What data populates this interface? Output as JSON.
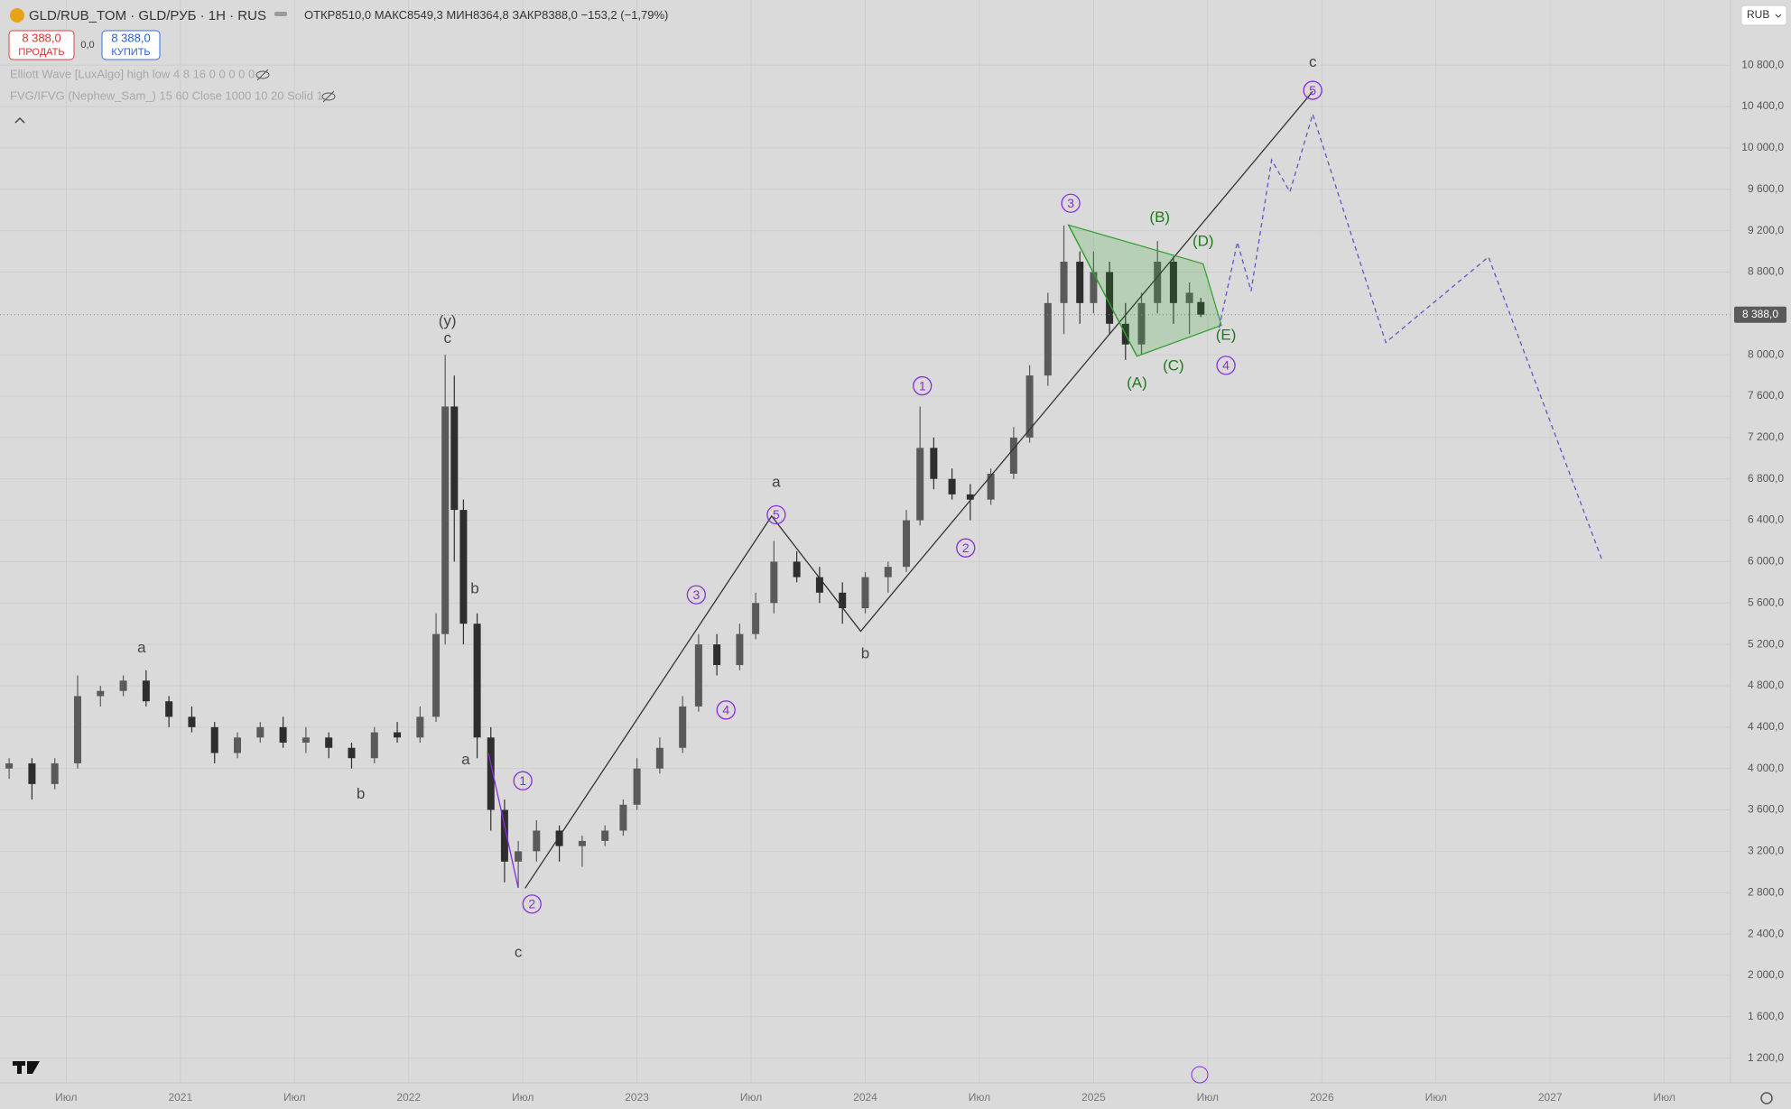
{
  "header": {
    "symbol": "GLD/RUB_TOM · GLD/РУБ · 1H · RUS",
    "open_label": "ОТКР",
    "open": "8510,0",
    "high_label": "МАКС",
    "high": "8549,3",
    "low_label": "МИН",
    "low": "8364,8",
    "close_label": "ЗАКР",
    "close": "8388,0",
    "change": "−153,2 (−1,79%)",
    "sell_price": "8 388,0",
    "sell_label": "ПРОДАТЬ",
    "spread": "0,0",
    "buy_price": "8 388,0",
    "buy_label": "КУПИТЬ",
    "indicators": [
      "Elliott Wave [LuxAlgo] high low 4 8 16 0 0 0 0 0",
      "FVG/IFVG (Nephew_Sam_) 15 60 Close 1000 10 20 Solid 1"
    ],
    "currency": "RUB"
  },
  "chart_data": {
    "type": "candlestick",
    "up_color": "#5a5a5a",
    "down_color": "#2e2e2e",
    "grid": true,
    "x": [
      2020.25,
      2020.35,
      2020.45,
      2020.55,
      2020.65,
      2020.75,
      2020.85,
      2020.95,
      2021.05,
      2021.15,
      2021.25,
      2021.35,
      2021.45,
      2021.55,
      2021.65,
      2021.75,
      2021.85,
      2021.95,
      2022.05,
      2022.12,
      2022.16,
      2022.2,
      2022.24,
      2022.3,
      2022.36,
      2022.42,
      2022.48,
      2022.56,
      2022.66,
      2022.76,
      2022.86,
      2022.94,
      2023.0,
      2023.1,
      2023.2,
      2023.27,
      2023.35,
      2023.45,
      2023.52,
      2023.6,
      2023.7,
      2023.8,
      2023.9,
      2024.0,
      2024.1,
      2024.18,
      2024.24,
      2024.3,
      2024.38,
      2024.46,
      2024.55,
      2024.65,
      2024.72,
      2024.8,
      2024.87,
      2024.94,
      2025.0,
      2025.07,
      2025.14,
      2025.21,
      2025.28,
      2025.35,
      2025.42,
      2025.47
    ],
    "open": [
      4000,
      4050,
      3850,
      4050,
      4700,
      4750,
      4850,
      4650,
      4500,
      4400,
      4150,
      4300,
      4400,
      4250,
      4300,
      4200,
      4100,
      4350,
      4300,
      4500,
      5300,
      7500,
      6500,
      5400,
      4300,
      3600,
      3100,
      3200,
      3400,
      3250,
      3300,
      3400,
      3650,
      4000,
      4200,
      4600,
      5200,
      5000,
      5300,
      5600,
      6000,
      5850,
      5700,
      5550,
      5850,
      5950,
      6400,
      7100,
      6800,
      6650,
      6600,
      6850,
      7200,
      7800,
      8500,
      8900,
      8500,
      8800,
      8300,
      8100,
      8500,
      8900,
      8500,
      8510
    ],
    "high": [
      4100,
      4100,
      4100,
      4900,
      4800,
      4900,
      4950,
      4700,
      4600,
      4450,
      4350,
      4450,
      4500,
      4400,
      4350,
      4250,
      4400,
      4450,
      4600,
      5500,
      8000,
      7800,
      6600,
      5500,
      4400,
      3700,
      3300,
      3500,
      3450,
      3350,
      3450,
      3700,
      4100,
      4300,
      4700,
      5300,
      5300,
      5400,
      5700,
      6200,
      6100,
      5950,
      5800,
      5900,
      6000,
      6500,
      7500,
      7200,
      6900,
      6750,
      6900,
      7300,
      7900,
      8600,
      9250,
      9000,
      9000,
      8900,
      8500,
      8600,
      9100,
      8950,
      8700,
      8549.3
    ],
    "low": [
      3900,
      3700,
      3800,
      4000,
      4600,
      4700,
      4600,
      4400,
      4350,
      4050,
      4100,
      4250,
      4200,
      4150,
      4100,
      4000,
      4050,
      4250,
      4250,
      4450,
      5200,
      6000,
      5200,
      4100,
      3400,
      2900,
      2850,
      3100,
      3100,
      3050,
      3250,
      3350,
      3600,
      3950,
      4150,
      4550,
      4900,
      4950,
      5250,
      5500,
      5800,
      5600,
      5400,
      5500,
      5700,
      5900,
      6350,
      6700,
      6600,
      6400,
      6550,
      6800,
      7150,
      7700,
      8200,
      8300,
      8400,
      8200,
      7950,
      8000,
      8400,
      8300,
      8200,
      8364.8
    ],
    "close": [
      4050,
      3850,
      4050,
      4700,
      4750,
      4850,
      4650,
      4500,
      4400,
      4150,
      4300,
      4400,
      4250,
      4300,
      4200,
      4100,
      4350,
      4300,
      4500,
      5300,
      7500,
      6500,
      5400,
      4300,
      3600,
      3100,
      3200,
      3400,
      3250,
      3300,
      3400,
      3650,
      4000,
      4200,
      4600,
      5200,
      5000,
      5300,
      5600,
      6000,
      5850,
      5700,
      5550,
      5850,
      5950,
      6400,
      7100,
      6800,
      6650,
      6600,
      6850,
      7200,
      7800,
      8500,
      8900,
      8500,
      8800,
      8300,
      8100,
      8500,
      8900,
      8500,
      8600,
      8388
    ],
    "xlim": [
      2020.21,
      2027.79
    ],
    "ylim": [
      970,
      11430
    ],
    "xticks": [
      {
        "value": 2020.5,
        "label": "Июл"
      },
      2021,
      {
        "value": 2021.5,
        "label": "Июл"
      },
      2022,
      {
        "value": 2022.5,
        "label": "Июл"
      },
      2023,
      {
        "value": 2023.5,
        "label": "Июл"
      },
      2024,
      {
        "value": 2024.5,
        "label": "Июл"
      },
      2025,
      {
        "value": 2025.5,
        "label": "Июл"
      },
      2026,
      {
        "value": 2026.5,
        "label": "Июл"
      },
      2027,
      {
        "value": 2027.5,
        "label": "Июл"
      }
    ],
    "yticks": [
      {
        "value": 1200,
        "label": "1 200,0"
      },
      {
        "value": 1600,
        "label": "1 600,0"
      },
      {
        "value": 2000,
        "label": "2 000,0"
      },
      {
        "value": 2400,
        "label": "2 400,0"
      },
      {
        "value": 2800,
        "label": "2 800,0"
      },
      {
        "value": 3200,
        "label": "3 200,0"
      },
      {
        "value": 3600,
        "label": "3 600,0"
      },
      {
        "value": 4000,
        "label": "4 000,0"
      },
      {
        "value": 4400,
        "label": "4 400,0"
      },
      {
        "value": 4800,
        "label": "4 800,0"
      },
      {
        "value": 5200,
        "label": "5 200,0"
      },
      {
        "value": 5600,
        "label": "5 600,0"
      },
      {
        "value": 6000,
        "label": "6 000,0"
      },
      {
        "value": 6400,
        "label": "6 400,0"
      },
      {
        "value": 6800,
        "label": "6 800,0"
      },
      {
        "value": 7200,
        "label": "7 200,0"
      },
      {
        "value": 7600,
        "label": "7 600,0"
      },
      {
        "value": 8000,
        "label": "8 000,0"
      },
      {
        "value": 8800,
        "label": "8 800,0"
      },
      {
        "value": 9200,
        "label": "9 200,0"
      },
      {
        "value": 9600,
        "label": "9 600,0"
      },
      {
        "value": 10000,
        "label": "10 000,0"
      },
      {
        "value": 10400,
        "label": "10 400,0"
      },
      {
        "value": 10800,
        "label": "10 800,0"
      }
    ],
    "last_price": {
      "value": 8388,
      "label": "8 388,0"
    },
    "drawings": [
      {
        "style": "solid",
        "color": "#333333",
        "x": [
          2022.51,
          2023.59,
          2023.98,
          2025.96
        ],
        "y": [
          2843,
          6441,
          5327,
          10546
        ]
      },
      {
        "style": "solid",
        "color": "#8a2be2",
        "x": [
          2022.35,
          2022.48
        ],
        "y": [
          4147,
          2845
        ]
      },
      {
        "style": "polygon",
        "color": "#2e9e2e",
        "x": [
          2024.89,
          2025.48,
          2025.56,
          2025.19
        ],
        "y": [
          9255,
          8880,
          8284,
          7986
        ]
      },
      {
        "style": "solid",
        "color": "#2e9e2e",
        "x": [
          2024.89,
          2025.19
        ],
        "y": [
          9255,
          7986
        ]
      },
      {
        "style": "dashed",
        "color": "#5a5ac8",
        "x": [
          2025.55,
          2025.63,
          2025.69,
          2025.78,
          2025.86,
          2025.96,
          2026.28,
          2026.73,
          2027.23
        ],
        "y": [
          8262,
          9090,
          8615,
          9884,
          9575,
          10326,
          8119,
          8946,
          6000
        ]
      }
    ],
    "annotations": [
      {
        "text": "(y)",
        "style": "plain",
        "x": 2022.17,
        "y": 8318
      },
      {
        "text": "c",
        "style": "plain",
        "x": 2022.17,
        "y": 8152
      },
      {
        "text": "a",
        "style": "plain",
        "x": 2020.83,
        "y": 5162
      },
      {
        "text": "b",
        "style": "plain",
        "x": 2021.79,
        "y": 3750
      },
      {
        "text": "b",
        "style": "plain",
        "x": 2022.29,
        "y": 5735
      },
      {
        "text": "a",
        "style": "plain",
        "x": 2022.25,
        "y": 4080
      },
      {
        "text": "c",
        "style": "plain",
        "x": 2022.48,
        "y": 2216
      },
      {
        "text": "a",
        "style": "plain",
        "x": 2023.61,
        "y": 6762
      },
      {
        "text": "b",
        "style": "plain",
        "x": 2024.0,
        "y": 5107
      },
      {
        "text": "c",
        "style": "plain",
        "x": 2025.96,
        "y": 10822
      },
      {
        "text": "1",
        "style": "circle",
        "x": 2022.5,
        "y": 3882
      },
      {
        "text": "2",
        "style": "circle",
        "x": 2022.54,
        "y": 2690
      },
      {
        "text": "3",
        "style": "circle",
        "x": 2023.26,
        "y": 5680
      },
      {
        "text": "4",
        "style": "circle",
        "x": 2023.39,
        "y": 4566
      },
      {
        "text": "5",
        "style": "circle",
        "x": 2023.61,
        "y": 6453
      },
      {
        "text": "1",
        "style": "circle",
        "x": 2024.25,
        "y": 7700
      },
      {
        "text": "2",
        "style": "circle",
        "x": 2024.44,
        "y": 6133
      },
      {
        "text": "3",
        "style": "circle",
        "x": 2024.9,
        "y": 9465
      },
      {
        "text": "4",
        "style": "circle",
        "x": 2025.58,
        "y": 7898
      },
      {
        "text": "5",
        "style": "circle",
        "x": 2025.96,
        "y": 10557
      },
      {
        "text": "(A)",
        "style": "green",
        "x": 2025.19,
        "y": 7722
      },
      {
        "text": "(B)",
        "style": "green",
        "x": 2025.29,
        "y": 9321
      },
      {
        "text": "(C)",
        "style": "green",
        "x": 2025.35,
        "y": 7887
      },
      {
        "text": "(D)",
        "style": "green",
        "x": 2025.48,
        "y": 9090
      },
      {
        "text": "(E)",
        "style": "green",
        "x": 2025.58,
        "y": 8185
      }
    ]
  }
}
